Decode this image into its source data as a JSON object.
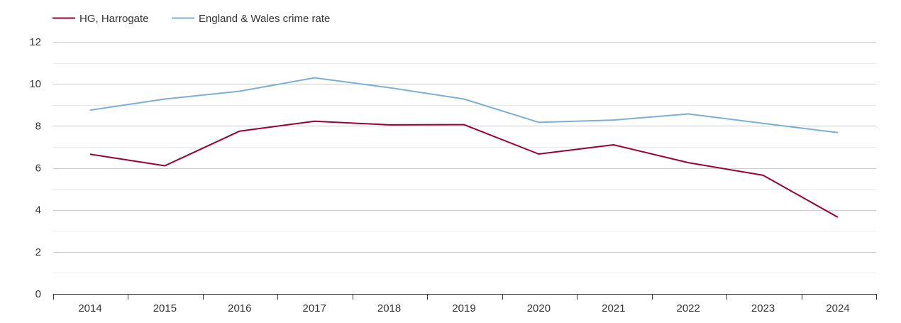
{
  "chart_data": {
    "type": "line",
    "x": [
      "2014",
      "2015",
      "2016",
      "2017",
      "2018",
      "2019",
      "2020",
      "2021",
      "2022",
      "2023",
      "2024"
    ],
    "series": [
      {
        "name": "HG, Harrogate",
        "color": "#990033",
        "values": [
          6.65,
          6.1,
          7.75,
          8.22,
          8.05,
          8.06,
          6.66,
          7.1,
          6.25,
          5.65,
          3.65
        ]
      },
      {
        "name": "England & Wales crime rate",
        "color": "#7ab0d4",
        "values": [
          8.75,
          9.28,
          9.65,
          10.29,
          9.82,
          9.28,
          8.17,
          8.28,
          8.57,
          8.12,
          7.68
        ]
      }
    ],
    "ylim": [
      0,
      12
    ],
    "yticks": [
      0,
      2,
      4,
      6,
      8,
      10,
      12
    ],
    "grid": true,
    "legend": "top-left"
  }
}
